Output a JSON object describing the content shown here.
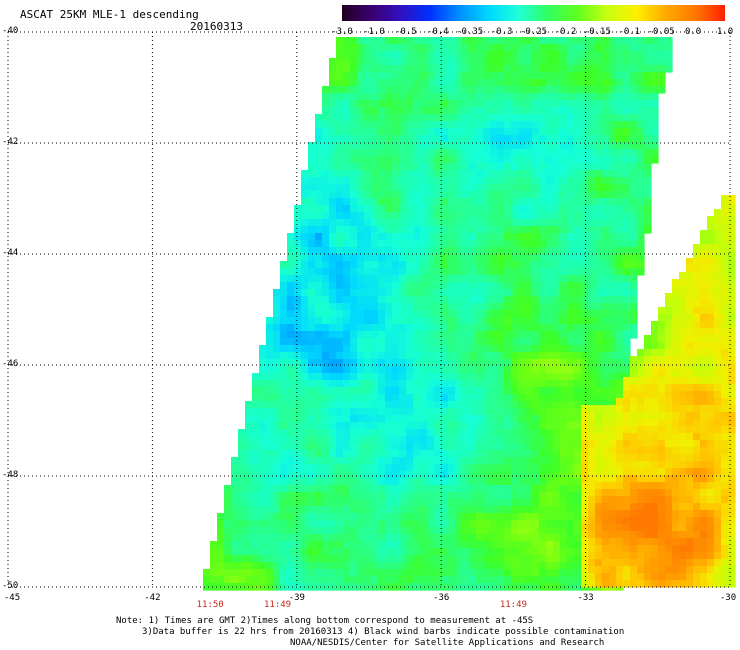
{
  "header": {
    "title": "ASCAT 25KM MLE-1 descending",
    "date": "20160313"
  },
  "colorbar": {
    "labels": [
      "-3.0",
      "-1.0",
      "-0.5",
      "-0.4",
      "-0.35",
      "-0.3",
      "-0.25",
      "-0.2",
      "-0.15",
      "-0.1",
      "-0.05",
      "0.0",
      "1.0"
    ],
    "colors": [
      "#200020",
      "#3a0070",
      "#3010c0",
      "#0030ff",
      "#0090ff",
      "#00d8ff",
      "#20ffd8",
      "#30ff60",
      "#60ff20",
      "#c8ff10",
      "#ffee00",
      "#ffaa00",
      "#ff7700",
      "#ff2000"
    ]
  },
  "axes": {
    "y_labels": [
      "-40",
      "-42",
      "-44",
      "-46",
      "-48",
      "-50"
    ],
    "x_labels": [
      "-45",
      "-42",
      "-39",
      "-36",
      "-33",
      "-30"
    ],
    "grid": "dotted"
  },
  "pass_times": [
    {
      "label": "11:50",
      "lon": -40.8
    },
    {
      "label": "11:49",
      "lon": -39.4
    },
    {
      "label": "11:49",
      "lon": -34.5
    }
  ],
  "notes": {
    "line1": "Note: 1) Times are GMT 2)Times along bottom correspond to measurement at -45S",
    "line2": "3)Data buffer is 22 hrs from 20160313 4) Black wind barbs indicate possible contamination",
    "line3": "NOAA/NESDIS/Center for Satellite Applications and Research"
  }
}
